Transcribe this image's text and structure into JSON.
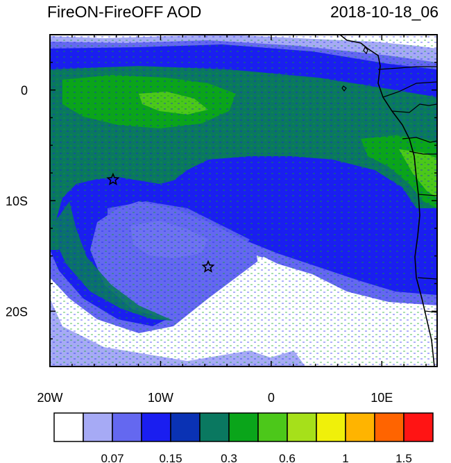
{
  "header": {
    "title": "FireON-FireOFF AOD",
    "datetime": "2018-10-18_06"
  },
  "map": {
    "lon_range": [
      -20,
      15
    ],
    "lat_range": [
      -25,
      5
    ],
    "x_ticks": [
      {
        "lon": -20,
        "label": "20W"
      },
      {
        "lon": -10,
        "label": "10W"
      },
      {
        "lon": 0,
        "label": "0"
      },
      {
        "lon": 10,
        "label": "10E"
      }
    ],
    "y_ticks": [
      {
        "lat": 0,
        "label": "0"
      },
      {
        "lat": -10,
        "label": "10S"
      },
      {
        "lat": -20,
        "label": "20S"
      }
    ],
    "markers": [
      {
        "name": "star-marker",
        "lon": -14.3,
        "lat": -8.1
      },
      {
        "name": "star-marker",
        "lon": -5.7,
        "lat": -16.0
      }
    ]
  },
  "colorbar": {
    "colors": [
      "#ffffff",
      "#a6aaf5",
      "#6468f0",
      "#1a1ef0",
      "#0a32b4",
      "#0a7860",
      "#0aa51a",
      "#4cc81a",
      "#a6e01a",
      "#f0f00a",
      "#ffb400",
      "#ff6400",
      "#ff1414"
    ],
    "labels": [
      {
        "after_box": 2,
        "text": "0.07"
      },
      {
        "after_box": 4,
        "text": "0.15"
      },
      {
        "after_box": 6,
        "text": "0.3"
      },
      {
        "after_box": 8,
        "text": "0.6"
      },
      {
        "after_box": 10,
        "text": "1"
      },
      {
        "after_box": 12,
        "text": "1.5"
      }
    ]
  }
}
